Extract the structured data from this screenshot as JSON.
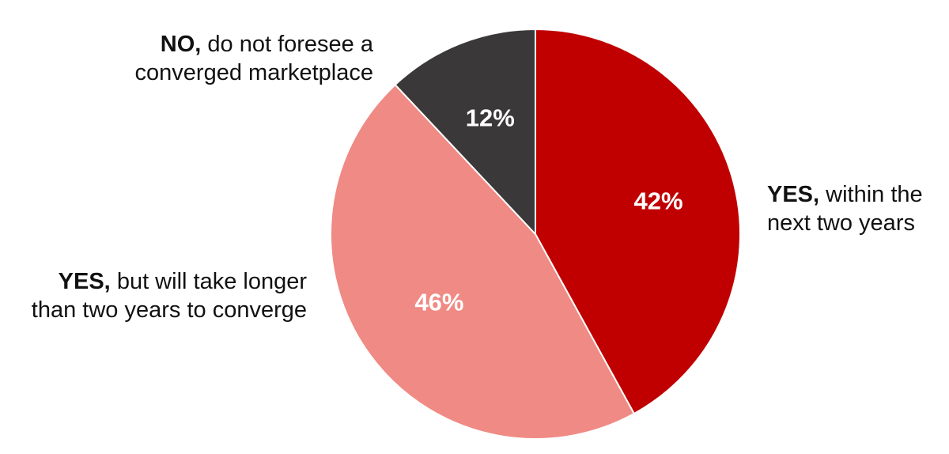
{
  "chart_data": {
    "type": "pie",
    "slices": [
      {
        "key": "yes-two",
        "bold": "YES,",
        "line1": "within the",
        "line2": "next two years",
        "value": 42,
        "value_label": "42%",
        "color": "#c00000"
      },
      {
        "key": "yes-long",
        "bold": "YES,",
        "line1": "but will take longer",
        "line2": "than two years to converge",
        "value": 46,
        "value_label": "46%",
        "color": "#f08a84"
      },
      {
        "key": "no",
        "bold": "NO,",
        "line1": "do not foresee a",
        "line2": "converged marketplace",
        "value": 12,
        "value_label": "12%",
        "color": "#3a3839"
      }
    ],
    "start_angle": "12 o'clock",
    "direction": "clockwise",
    "legend": "none"
  }
}
